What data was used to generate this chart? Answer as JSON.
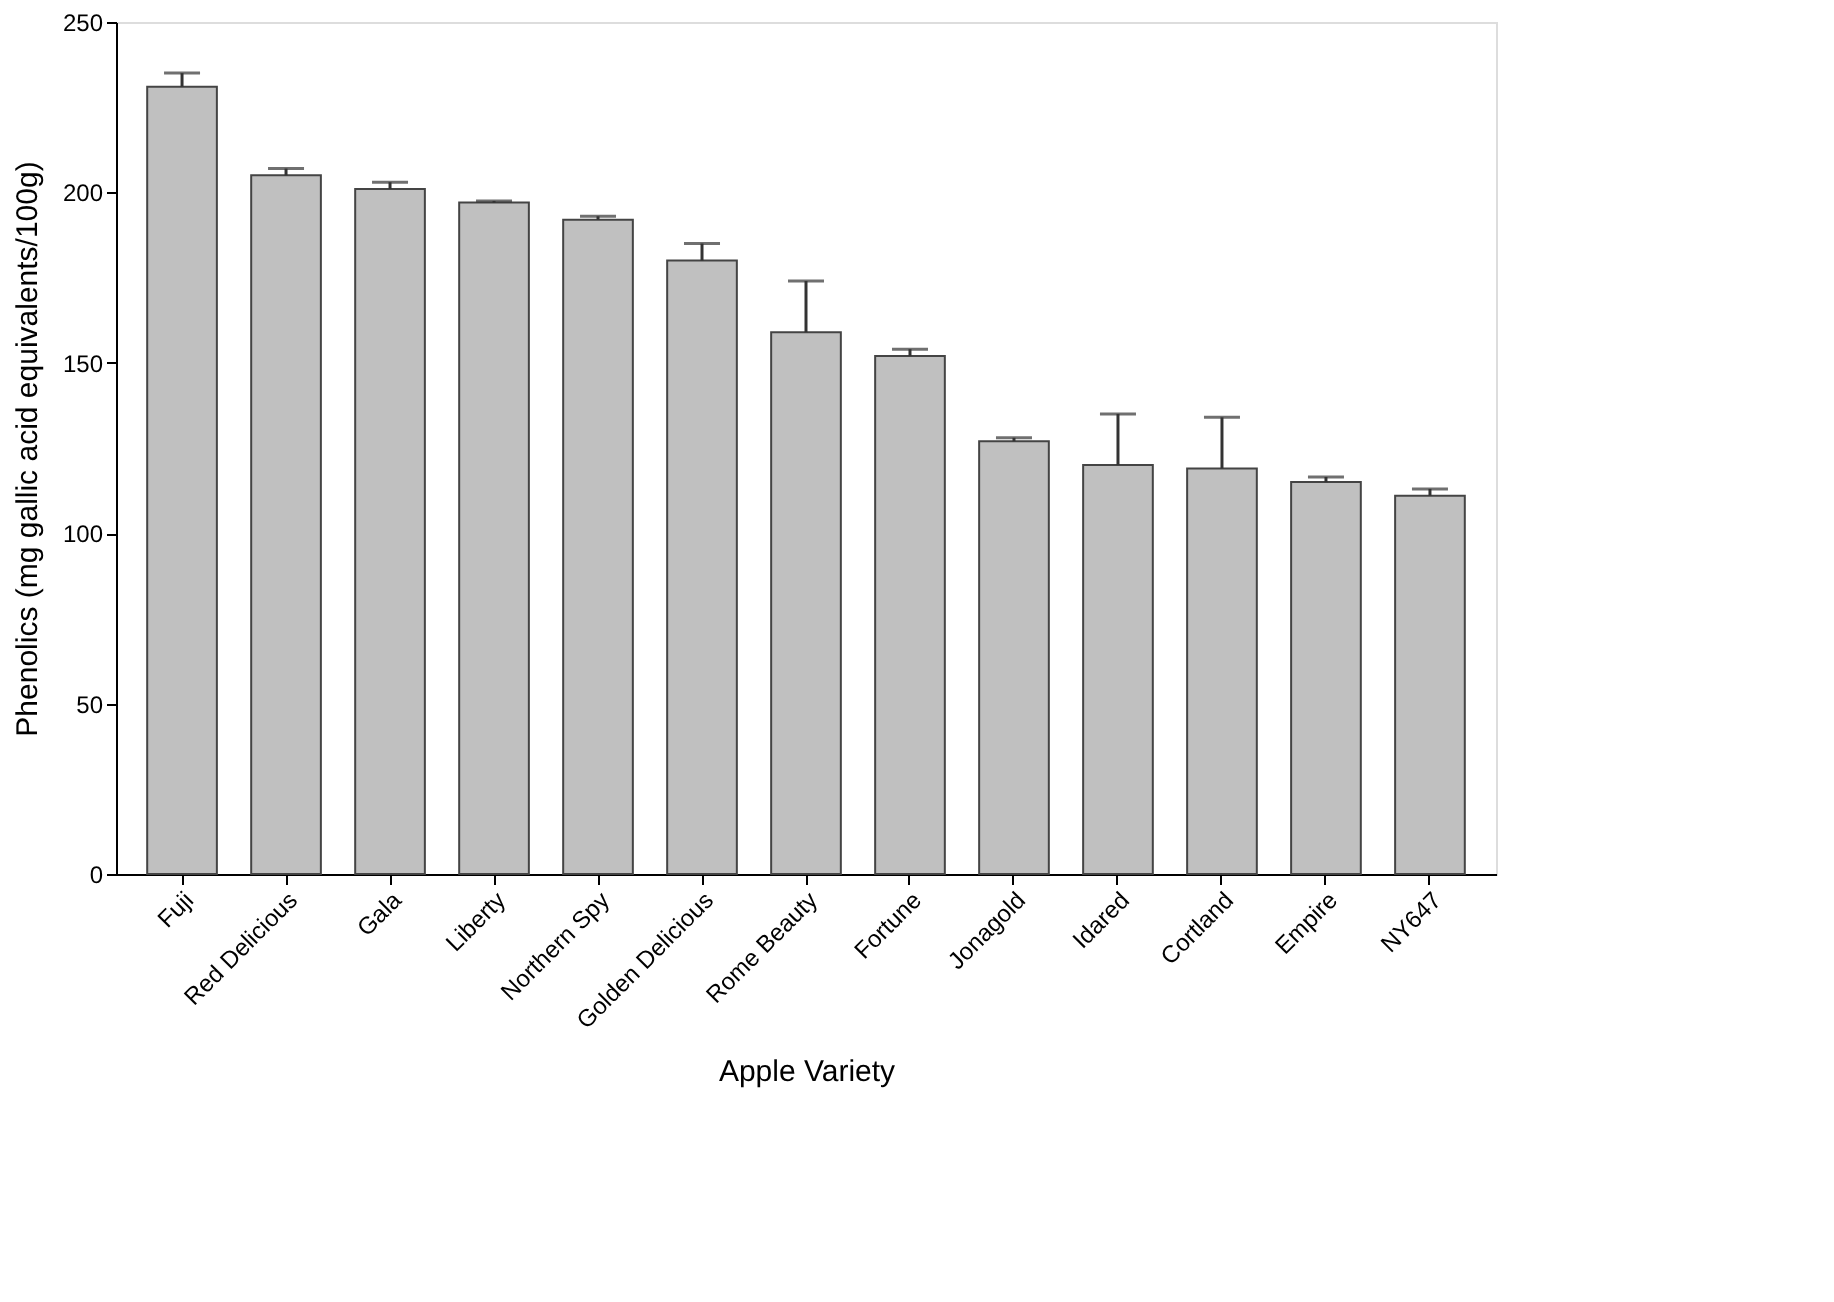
{
  "chart_data": {
    "type": "bar",
    "xlabel": "Apple Variety",
    "ylabel": "Phenolics (mg gallic acid equivalents/100g)",
    "categories": [
      "Fuji",
      "Red Delicious",
      "Gala",
      "Liberty",
      "Northern Spy",
      "Golden Delicious",
      "Rome Beauty",
      "Fortune",
      "Jonagold",
      "Idared",
      "Cortland",
      "Empire",
      "NY647"
    ],
    "values": [
      231,
      205,
      201,
      197,
      192,
      180,
      159,
      152,
      127,
      120,
      119,
      115,
      111
    ],
    "errors": [
      [
        231,
        235
      ],
      [
        205,
        207
      ],
      [
        201,
        203
      ],
      [
        197,
        197.5
      ],
      [
        192,
        193
      ],
      [
        180,
        185
      ],
      [
        159,
        174
      ],
      [
        152,
        154
      ],
      [
        127,
        128
      ],
      [
        120,
        135
      ],
      [
        119,
        134
      ],
      [
        115,
        116.5
      ],
      [
        111,
        113
      ]
    ],
    "color": "#c0c0c0",
    "ylim": [
      0,
      250
    ],
    "yticks": [
      0,
      50,
      100,
      150,
      200,
      250
    ],
    "grid": false
  }
}
